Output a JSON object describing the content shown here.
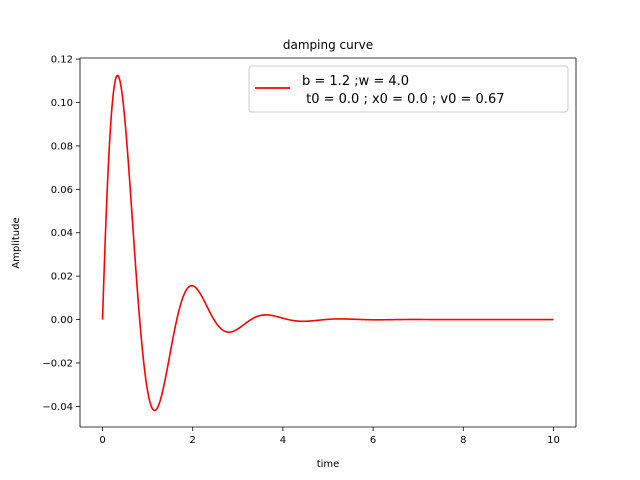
{
  "chart_data": {
    "type": "line",
    "title": "damping curve",
    "xlabel": "time",
    "ylabel": "Amplitude",
    "xlim": [
      -0.5,
      10.5
    ],
    "ylim": [
      -0.0495,
      0.1205
    ],
    "xticks": [
      0,
      2,
      4,
      6,
      8,
      10
    ],
    "xtick_labels": [
      "0",
      "2",
      "4",
      "6",
      "8",
      "10"
    ],
    "yticks": [
      -0.04,
      -0.02,
      0.0,
      0.02,
      0.04,
      0.06,
      0.08,
      0.1,
      0.12
    ],
    "ytick_labels": [
      "−0.04",
      "−0.02",
      "0.00",
      "0.02",
      "0.04",
      "0.06",
      "0.08",
      "0.10",
      "0.12"
    ],
    "grid": false,
    "legend_position": "top-right",
    "series": [
      {
        "name_lines": [
          "b = 1.2 ;w = 4.0",
          " t0 = 0.0 ; x0 = 0.0 ; v0 = 0.67"
        ],
        "color": "#ff0000",
        "model": {
          "b": 1.2,
          "w": 4.0,
          "t0": 0.0,
          "x0": 0.0,
          "v0": 0.67,
          "t_end": 10.0
        }
      }
    ]
  }
}
